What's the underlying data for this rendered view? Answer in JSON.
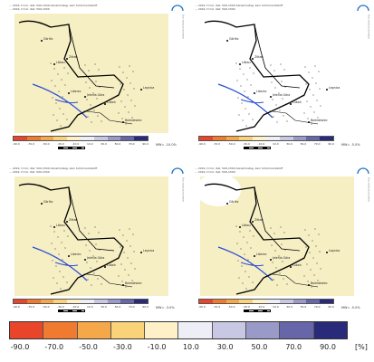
{
  "panels": [
    {
      "id": "tl",
      "header": "... 2019, t=12, dist. 500-1500 Abnahmetag, kein Schirmwirkstoff\n... 2019, t=12, dist. 500-1500",
      "fill": "#f6efc4",
      "mw": "MW= -10.0%"
    },
    {
      "id": "tr",
      "header": "... 2019, t=12, dist. 500-1500 Abnahmetag, kein Schirmwirkstoff\n... 2019, t=12, dist. 500-1500",
      "fill": "#ffffff",
      "mw": "MW= -5.0%"
    },
    {
      "id": "bl",
      "header": "... 2019, t=12, dist. 500-1500 Abnahmetag, kein Schirmwirkstoff\n... 2019, t=12, dist. 500-1500",
      "fill": "#f6efc4",
      "mw": "MW= -3.0%"
    },
    {
      "id": "br",
      "header": "... 2019, t=12, dist. 500-1500 Abnahmetag, kein Schirmwirkstoff\n... 2019, t=12, dist. 500-1500",
      "fill": "#f6efc4",
      "mw": "MW= -5.0%"
    }
  ],
  "cities": [
    "Görlitz",
    "Löbau",
    "Zittau",
    "Liberec",
    "Jelenia Góra",
    "Lubań",
    "Bolesławiec",
    "Legnica"
  ],
  "side_text": "www.example.org",
  "scale": {
    "colors": [
      "#e8452a",
      "#f07a2f",
      "#f5a84a",
      "#f9d27a",
      "#fff0c8",
      "#eeeef6",
      "#c8c8e4",
      "#9a9ac8",
      "#6666a8",
      "#2a2a7a"
    ],
    "labels": [
      "-90.0",
      "-70.0",
      "-50.0",
      "-30.0",
      "-10.0",
      "10.0",
      "30.0",
      "50.0",
      "70.0",
      "90.0"
    ],
    "unit": "[%]"
  },
  "mini_ticks": [
    "-90.0",
    "-70.0",
    "-50.0",
    "-30.0",
    "-10.0",
    "10.0",
    "30.0",
    "50.0",
    "70.0",
    "90.0"
  ]
}
